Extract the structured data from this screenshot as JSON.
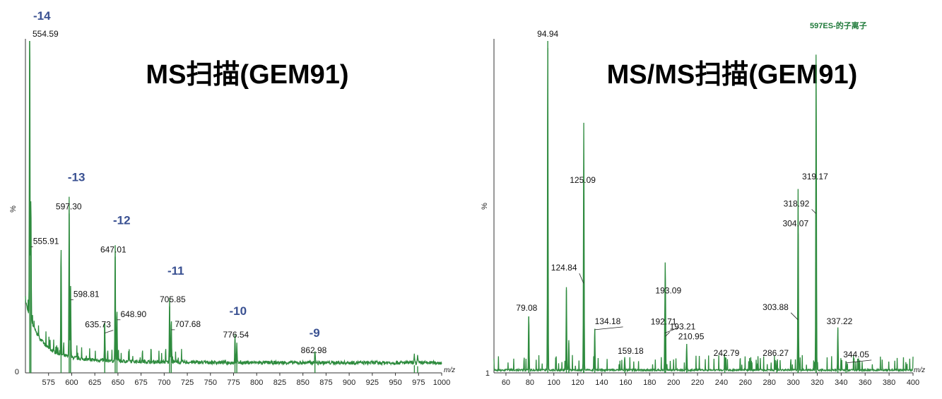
{
  "colors": {
    "trace": "#2e8b3e",
    "charge": "#3a5192",
    "axis": "#333333",
    "note": "#1f7a3a"
  },
  "chart_data": [
    {
      "type": "line",
      "title": "MS扫描(GEM91)",
      "xlabel": "m/z",
      "ylabel": "%",
      "y_ticks": [
        "0"
      ],
      "xlim": [
        550,
        1000
      ],
      "ylim": [
        0,
        100
      ],
      "x_ticks": [
        575,
        600,
        625,
        650,
        675,
        700,
        725,
        750,
        775,
        800,
        825,
        850,
        875,
        900,
        925,
        950,
        975,
        1000
      ],
      "peaks": [
        {
          "x": 554.59,
          "y": 100,
          "label": "554.59"
        },
        {
          "x": 555.91,
          "y": 38,
          "label": "555.91"
        },
        {
          "x": 588.5,
          "y": 32,
          "label": ""
        },
        {
          "x": 597.3,
          "y": 48,
          "label": "597.30"
        },
        {
          "x": 598.81,
          "y": 22,
          "label": "598.81"
        },
        {
          "x": 635.73,
          "y": 12,
          "label": "635.73"
        },
        {
          "x": 647.01,
          "y": 35,
          "label": "647.01"
        },
        {
          "x": 648.9,
          "y": 16,
          "label": "648.90"
        },
        {
          "x": 705.85,
          "y": 20,
          "label": "705.85"
        },
        {
          "x": 707.68,
          "y": 13,
          "label": "707.68"
        },
        {
          "x": 776.54,
          "y": 8.5,
          "label": "776.54"
        },
        {
          "x": 778.5,
          "y": 5.5,
          "label": ""
        },
        {
          "x": 862.98,
          "y": 3.8,
          "label": "862.98"
        },
        {
          "x": 970.5,
          "y": 2.3,
          "label": ""
        },
        {
          "x": 974.0,
          "y": 2.0,
          "label": ""
        }
      ],
      "charge_labels": [
        {
          "text": "-14",
          "x": 554.59
        },
        {
          "text": "-13",
          "x": 597.3
        },
        {
          "text": "-12",
          "x": 647.01
        },
        {
          "text": "-11",
          "x": 705.85
        },
        {
          "text": "-10",
          "x": 776.54
        },
        {
          "text": "-9",
          "x": 862.98
        }
      ]
    },
    {
      "type": "line",
      "title": "MS/MS扫描(GEM91)",
      "subtitle": "597ES-的子离子",
      "xlabel": "m/z",
      "ylabel": "%",
      "y_ticks": [
        "1"
      ],
      "xlim": [
        50,
        400
      ],
      "ylim": [
        0,
        100
      ],
      "x_ticks": [
        60,
        80,
        100,
        120,
        140,
        160,
        180,
        200,
        220,
        240,
        260,
        280,
        300,
        320,
        340,
        360,
        380,
        400
      ],
      "peaks": [
        {
          "x": 79.08,
          "y": 17,
          "label": "79.08"
        },
        {
          "x": 94.94,
          "y": 100,
          "label": "94.94"
        },
        {
          "x": 110.5,
          "y": 25,
          "label": ""
        },
        {
          "x": 112.5,
          "y": 9,
          "label": ""
        },
        {
          "x": 124.84,
          "y": 27,
          "label": "124.84"
        },
        {
          "x": 125.09,
          "y": 56,
          "label": "125.09"
        },
        {
          "x": 134.18,
          "y": 13,
          "label": "134.18"
        },
        {
          "x": 159.18,
          "y": 4,
          "label": "159.18"
        },
        {
          "x": 192.71,
          "y": 12,
          "label": "192.71"
        },
        {
          "x": 193.09,
          "y": 18,
          "label": "193.09"
        },
        {
          "x": 193.21,
          "y": 11,
          "label": "193.21"
        },
        {
          "x": 210.95,
          "y": 8,
          "label": "210.95"
        },
        {
          "x": 242.79,
          "y": 3,
          "label": "242.79"
        },
        {
          "x": 286.27,
          "y": 3,
          "label": "286.27"
        },
        {
          "x": 303.88,
          "y": 16,
          "label": "303.88"
        },
        {
          "x": 304.07,
          "y": 42,
          "label": "304.07"
        },
        {
          "x": 318.92,
          "y": 48,
          "label": "318.92"
        },
        {
          "x": 319.17,
          "y": 57,
          "label": "319.17"
        },
        {
          "x": 337.22,
          "y": 13,
          "label": "337.22"
        },
        {
          "x": 344.05,
          "y": 3,
          "label": "344.05"
        }
      ]
    }
  ]
}
